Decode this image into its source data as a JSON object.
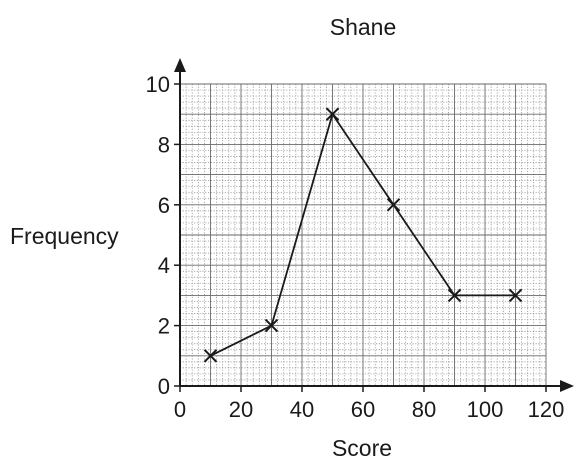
{
  "chart_data": {
    "type": "line",
    "title": "Shane",
    "xlabel": "Score",
    "ylabel": "Frequency",
    "xlim": [
      0,
      120
    ],
    "ylim": [
      0,
      10
    ],
    "x_ticks": [
      "0",
      "20",
      "40",
      "60",
      "80",
      "100",
      "120"
    ],
    "y_ticks": [
      "0",
      "2",
      "4",
      "6",
      "8",
      "10"
    ],
    "grid": true,
    "marker": "cross",
    "series": [
      {
        "x": [
          10,
          30,
          50,
          70,
          90,
          110
        ],
        "y": [
          1,
          2,
          9,
          6,
          3,
          3
        ]
      }
    ]
  }
}
